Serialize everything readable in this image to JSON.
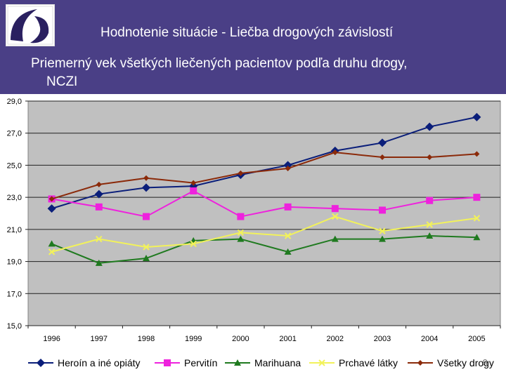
{
  "slide": {
    "title": "Hodnotenie situácie  - Liečba drogových závislostí",
    "subtitle_line1": "Priemerný vek všetkých liečených pacientov podľa druhu drogy,",
    "subtitle_line2": "NCZI",
    "page_number": "9",
    "background_color": "#4a3f86"
  },
  "logo": {
    "icon": "institution-logo-icon",
    "colors": [
      "#2a2060",
      "#ffffff"
    ]
  },
  "chart_data": {
    "type": "line",
    "categories": [
      "1996",
      "1997",
      "1998",
      "1999",
      "2000",
      "2001",
      "2002",
      "2003",
      "2004",
      "2005"
    ],
    "y_ticks": [
      "15,0",
      "17,0",
      "19,0",
      "21,0",
      "23,0",
      "25,0",
      "27,0",
      "29,0"
    ],
    "ylim": [
      15,
      29
    ],
    "grid": "horizontal",
    "plot_background": "#c0c0c0",
    "legend_position": "bottom",
    "series": [
      {
        "name": "Heroín a iné opiáty",
        "color": "#0a1e7a",
        "marker": "diamond",
        "values": [
          22.3,
          23.2,
          23.6,
          23.7,
          24.4,
          25.0,
          25.9,
          26.4,
          27.4,
          28.0
        ]
      },
      {
        "name": "Pervitín",
        "color": "#ee22dd",
        "marker": "square",
        "values": [
          22.9,
          22.4,
          21.8,
          23.4,
          21.8,
          22.4,
          22.3,
          22.2,
          22.8,
          23.0
        ]
      },
      {
        "name": "Marihuana",
        "color": "#1f7a1f",
        "marker": "triangle",
        "values": [
          20.1,
          18.9,
          19.2,
          20.3,
          20.4,
          19.6,
          20.4,
          20.4,
          20.6,
          20.5
        ]
      },
      {
        "name": "Prchavé látky",
        "color": "#f2f25a",
        "marker": "x",
        "values": [
          19.6,
          20.4,
          19.9,
          20.1,
          20.8,
          20.6,
          21.8,
          20.9,
          21.3,
          21.7
        ]
      },
      {
        "name": "Všetky drogy",
        "color": "#8b2a0a",
        "marker": "small-diamond",
        "values": [
          22.9,
          23.8,
          24.2,
          23.9,
          24.5,
          24.8,
          25.8,
          25.5,
          25.5,
          25.7
        ]
      }
    ]
  }
}
